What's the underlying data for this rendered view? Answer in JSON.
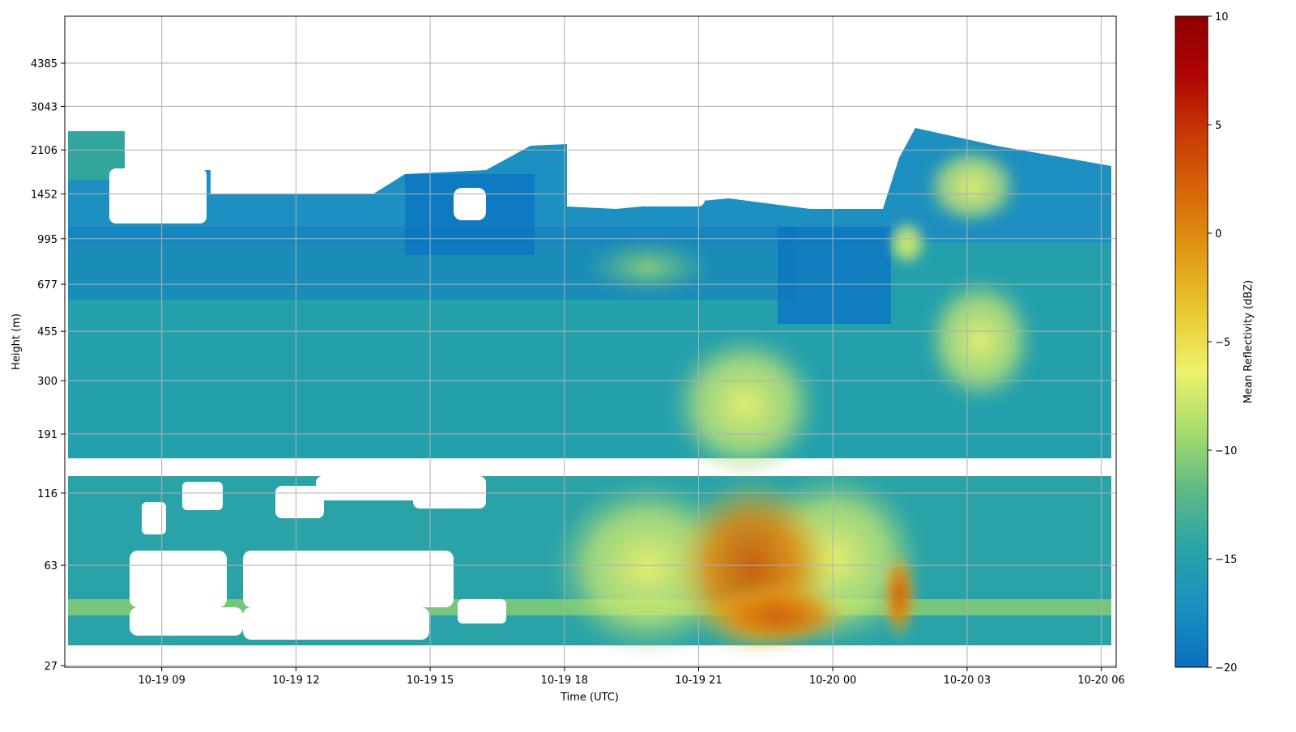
{
  "chart_data": {
    "type": "heatmap",
    "title": "",
    "xlabel": "Time (UTC)",
    "ylabel": "Height (m)",
    "x_ticks": [
      "10-19 09",
      "10-19 12",
      "10-19 15",
      "10-19 18",
      "10-19 21",
      "10-20 00",
      "10-20 03",
      "10-20 06"
    ],
    "x_range": [
      "2024-10-19 06:50",
      "2024-10-20 06:20"
    ],
    "y_scale": "log",
    "y_ticks": [
      "27",
      "63",
      "116",
      "191",
      "300",
      "455",
      "677",
      "995",
      "1452",
      "2106",
      "3043",
      "4385"
    ],
    "colorbar": {
      "label": "Mean Reflectivity (dBZ)",
      "min": -20,
      "max": 10,
      "ticks": [
        "10",
        "5",
        "0",
        "−5",
        "−10",
        "−15",
        "−20"
      ],
      "colors": [
        "#0a70c0",
        "#1a8fc0",
        "#2aa3a8",
        "#5fba84",
        "#a8dc6c",
        "#eef26a",
        "#eac830",
        "#e09a14",
        "#d86808",
        "#c83a06",
        "#b00404",
        "#8e0000"
      ]
    },
    "grid": true,
    "features": [
      {
        "name": "upper cloud layer",
        "time": [
          "06:50",
          "06:20"
        ],
        "height_m": [
          300,
          2700
        ],
        "dbz": -16
      },
      {
        "name": "near-surface core",
        "time": [
          "21:30",
          "23:30"
        ],
        "height_m": [
          40,
          200
        ],
        "dbz": 2
      },
      {
        "name": "elevated echo",
        "time": [
          "01:30",
          "05:00"
        ],
        "height_m": [
          400,
          2200
        ],
        "dbz": -8
      }
    ]
  }
}
